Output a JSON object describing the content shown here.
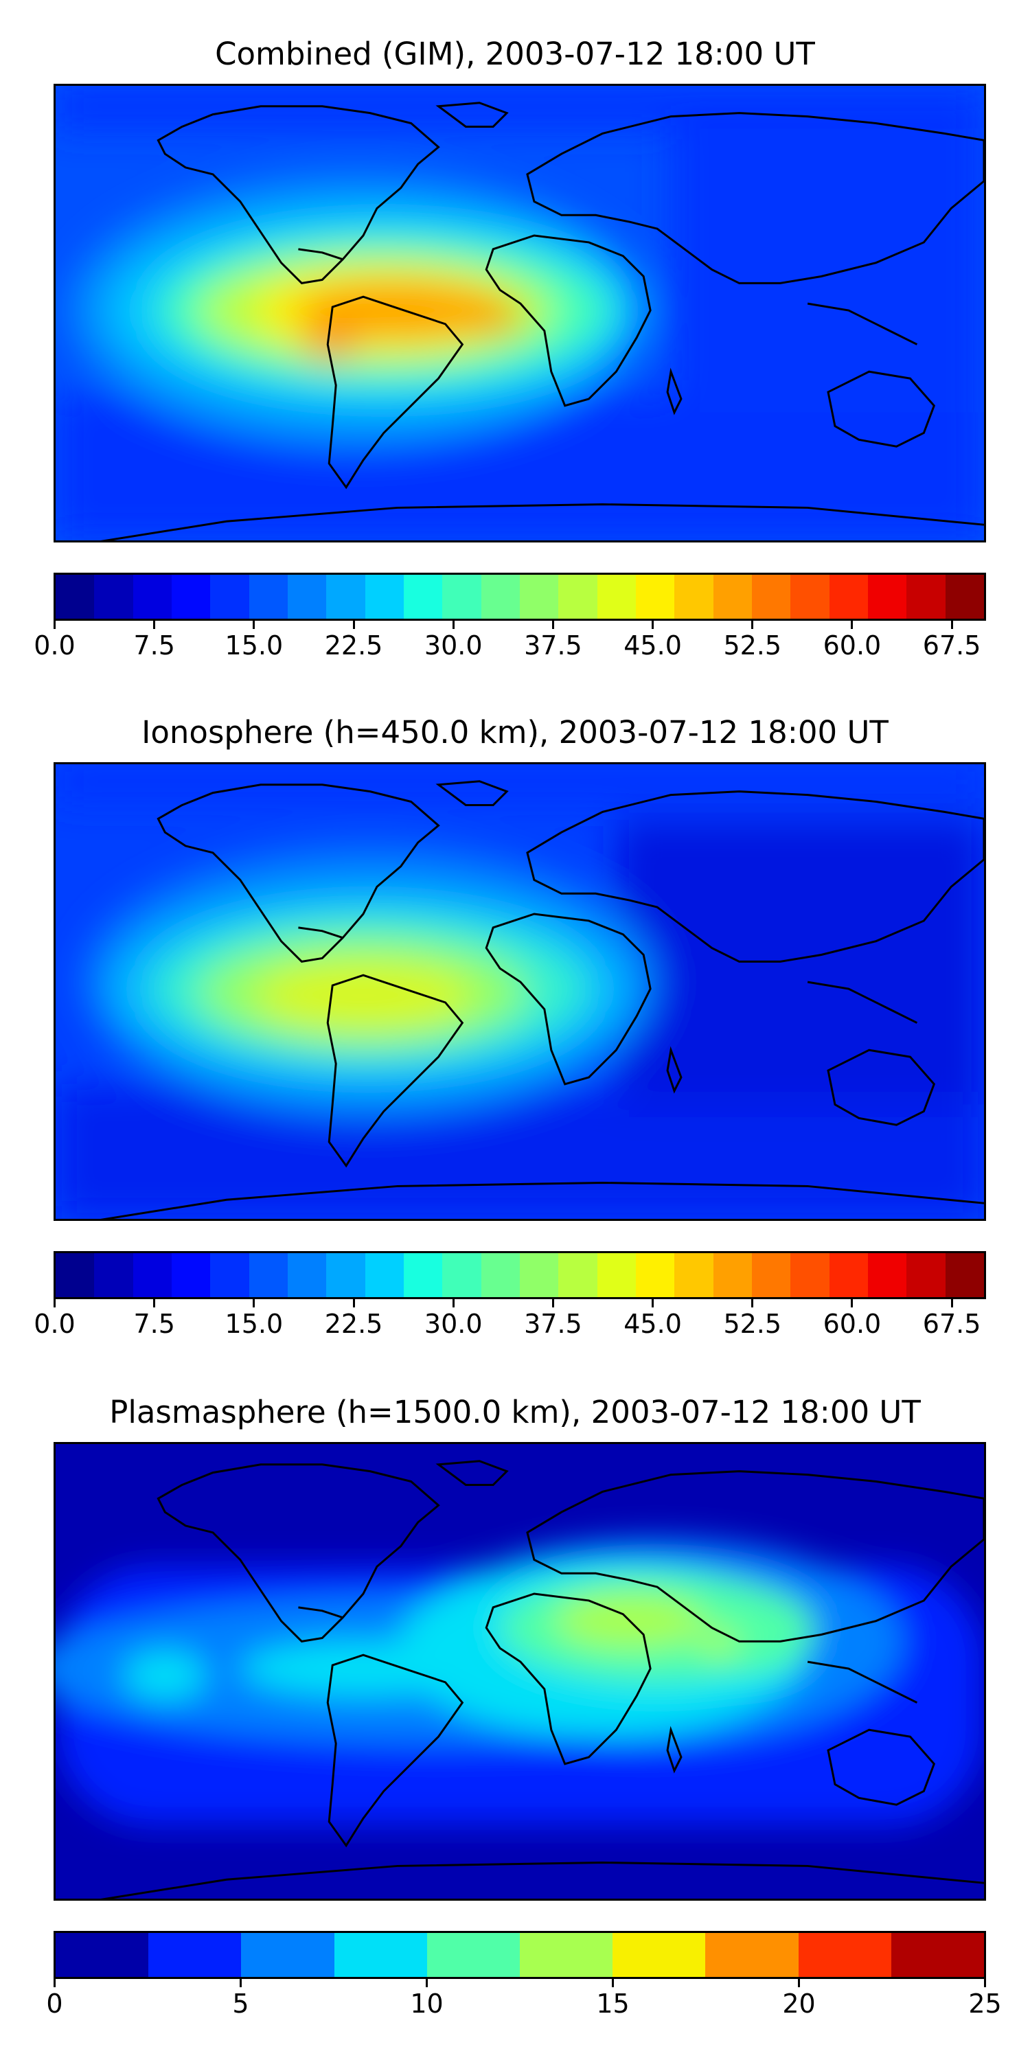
{
  "panels": [
    {
      "title": "Combined (GIM), 2003-07-12 18:00 UT",
      "colorbar": {
        "colors": [
          "#00008f",
          "#0000b8",
          "#0000e0",
          "#0008ff",
          "#0030ff",
          "#0058ff",
          "#0080ff",
          "#00a8ff",
          "#00d0ff",
          "#18ffe0",
          "#40ffb8",
          "#68ff90",
          "#90ff68",
          "#b8ff40",
          "#e0ff18",
          "#fff000",
          "#ffc800",
          "#ffa000",
          "#ff7800",
          "#ff5000",
          "#ff2800",
          "#f00000",
          "#c80000",
          "#8f0000"
        ],
        "vmin": 0,
        "vmax": 70,
        "tick_values": [
          0,
          7.5,
          15,
          22.5,
          30,
          37.5,
          45,
          52.5,
          60,
          67.5
        ],
        "tick_labels": [
          "0.0",
          "7.5",
          "15.0",
          "22.5",
          "30.0",
          "37.5",
          "45.0",
          "52.5",
          "60.0",
          "67.5"
        ]
      }
    },
    {
      "title": "Ionosphere  (h=450.0 km), 2003-07-12 18:00 UT",
      "colorbar": {
        "colors": [
          "#00008f",
          "#0000b8",
          "#0000e0",
          "#0008ff",
          "#0030ff",
          "#0058ff",
          "#0080ff",
          "#00a8ff",
          "#00d0ff",
          "#18ffe0",
          "#40ffb8",
          "#68ff90",
          "#90ff68",
          "#b8ff40",
          "#e0ff18",
          "#fff000",
          "#ffc800",
          "#ffa000",
          "#ff7800",
          "#ff5000",
          "#ff2800",
          "#f00000",
          "#c80000",
          "#8f0000"
        ],
        "vmin": 0,
        "vmax": 70,
        "tick_values": [
          0,
          7.5,
          15,
          22.5,
          30,
          37.5,
          45,
          52.5,
          60,
          67.5
        ],
        "tick_labels": [
          "0.0",
          "7.5",
          "15.0",
          "22.5",
          "30.0",
          "37.5",
          "45.0",
          "52.5",
          "60.0",
          "67.5"
        ]
      }
    },
    {
      "title": "Plasmasphere (h=1500.0 km), 2003-07-12 18:00 UT",
      "colorbar": {
        "colors": [
          "#0000a8",
          "#0020ff",
          "#0080ff",
          "#00e0f8",
          "#50ffa8",
          "#a8ff50",
          "#f8f000",
          "#ff9000",
          "#ff3000",
          "#b00000"
        ],
        "vmin": 0,
        "vmax": 25,
        "tick_values": [
          0,
          5,
          10,
          15,
          20,
          25
        ],
        "tick_labels": [
          "0",
          "5",
          "10",
          "15",
          "20",
          "25"
        ]
      }
    }
  ]
}
